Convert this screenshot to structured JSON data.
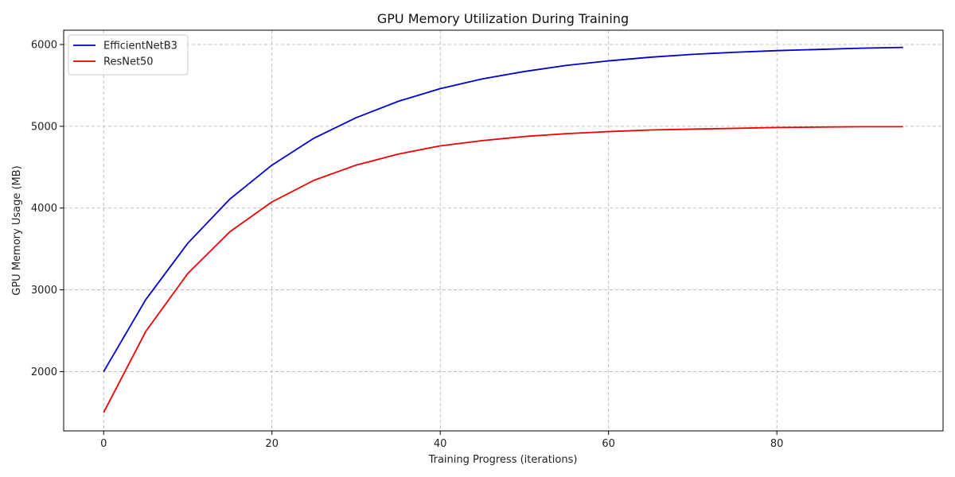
{
  "chart_data": {
    "type": "line",
    "title": "GPU Memory Utilization During Training",
    "xlabel": "Training Progress (iterations)",
    "ylabel": "GPU Memory Usage (MB)",
    "xlim": [
      -4.75,
      99.75
    ],
    "ylim": [
      1275,
      6175
    ],
    "xticks": [
      0,
      20,
      40,
      60,
      80
    ],
    "yticks": [
      2000,
      3000,
      4000,
      5000,
      6000
    ],
    "grid": true,
    "legend_position": "top-left",
    "x": [
      0,
      5,
      10,
      15,
      20,
      25,
      30,
      35,
      40,
      45,
      50,
      55,
      60,
      65,
      70,
      75,
      80,
      85,
      90,
      95
    ],
    "series": [
      {
        "name": "EfficientNetB3",
        "color": "#0000cc",
        "values": [
          2000,
          2880,
          3570,
          4110,
          4525,
          4855,
          5105,
          5305,
          5460,
          5580,
          5670,
          5745,
          5800,
          5845,
          5880,
          5905,
          5925,
          5940,
          5955,
          5965
        ]
      },
      {
        "name": "ResNet50",
        "color": "#ee0000",
        "values": [
          1500,
          2490,
          3200,
          3710,
          4075,
          4340,
          4525,
          4660,
          4760,
          4825,
          4875,
          4910,
          4935,
          4955,
          4965,
          4975,
          4985,
          4990,
          4995,
          4995
        ]
      }
    ]
  }
}
